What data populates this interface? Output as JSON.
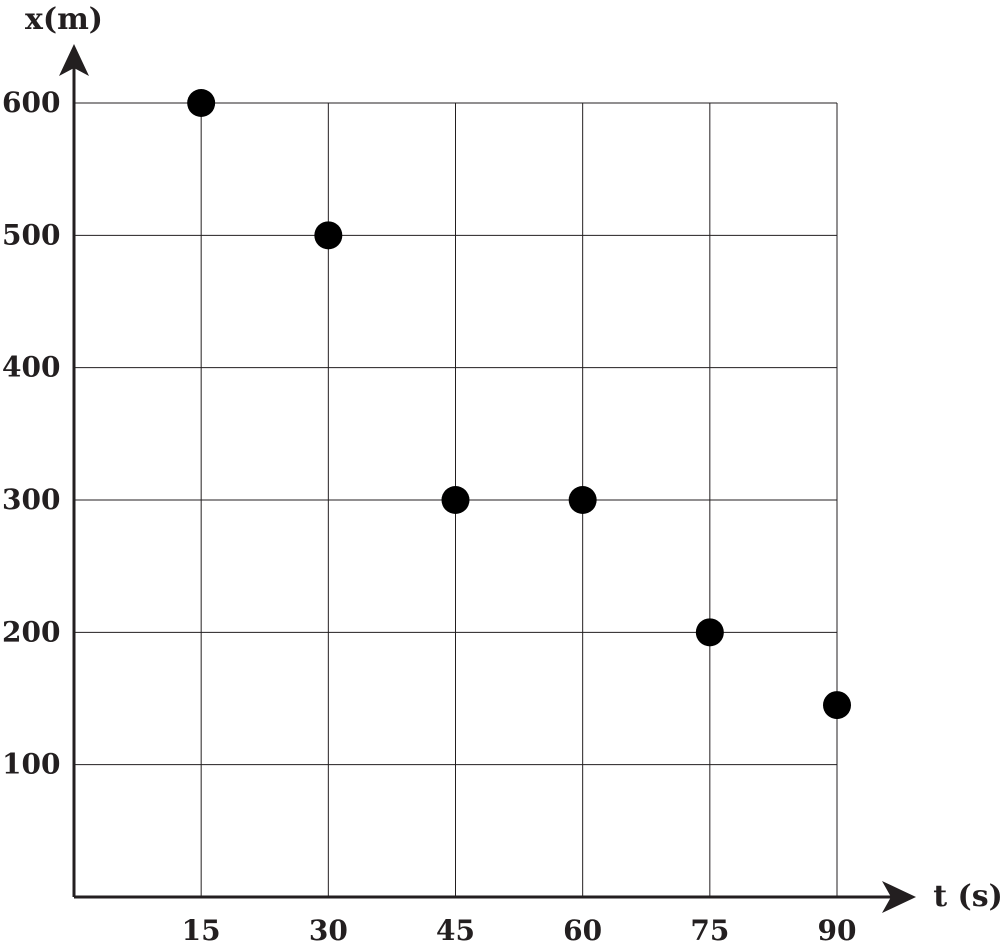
{
  "chart_data": {
    "type": "scatter",
    "xlabel": "t (s)",
    "ylabel": "x(m)",
    "x_ticks": [
      "15",
      "30",
      "45",
      "60",
      "75",
      "90"
    ],
    "y_ticks": [
      "100",
      "200",
      "300",
      "400",
      "500",
      "600"
    ],
    "xlim": [
      0,
      90
    ],
    "ylim": [
      0,
      600
    ],
    "grid": true,
    "points": [
      {
        "x": 15,
        "y": 600
      },
      {
        "x": 30,
        "y": 500
      },
      {
        "x": 45,
        "y": 300
      },
      {
        "x": 60,
        "y": 300
      },
      {
        "x": 75,
        "y": 200
      },
      {
        "x": 90,
        "y": 145
      }
    ],
    "colors": {
      "point": "#000000",
      "axis": "#231f20",
      "grid": "#231f20"
    }
  }
}
